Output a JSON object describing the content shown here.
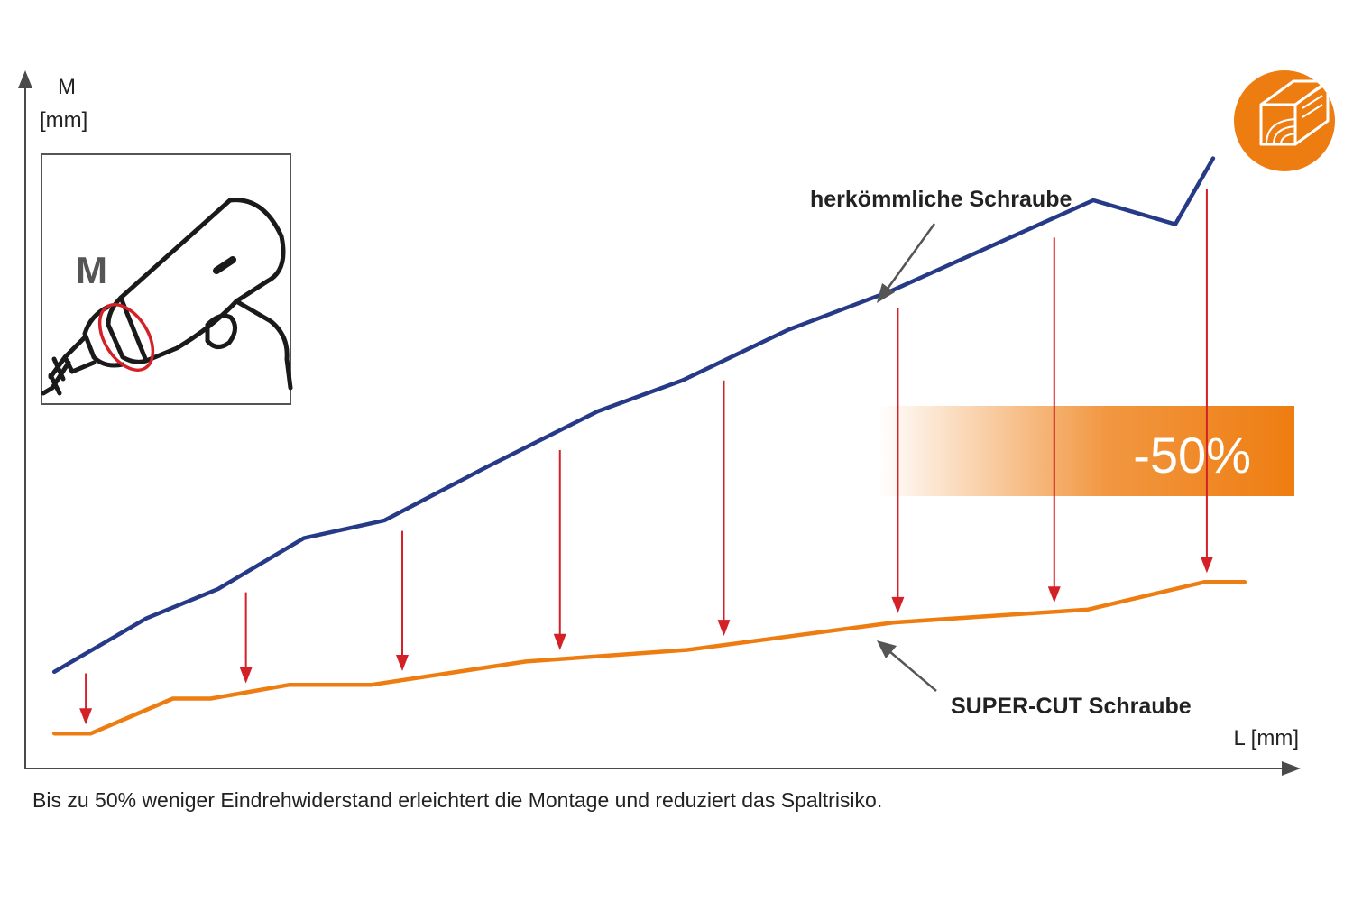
{
  "chart_data": {
    "type": "line",
    "title": "",
    "ylabel_symbol": "M",
    "ylabel_unit": "[mm]",
    "xlabel": "L [mm]",
    "xlim": [
      0,
      100
    ],
    "ylim": [
      0,
      100
    ],
    "grid": false,
    "series": [
      {
        "name": "herkömmliche Schraube",
        "color": "#263a87",
        "x": [
          2.3,
          9.6,
          15.3,
          22.1,
          28.5,
          36.5,
          45.4,
          52.1,
          60.5,
          68.7,
          84.7,
          91.2,
          94.2
        ],
        "y": [
          14.1,
          21.9,
          26.2,
          33.6,
          36.2,
          43.9,
          52.1,
          56.6,
          64.0,
          69.7,
          82.9,
          79.4,
          89.0
        ]
      },
      {
        "name": "SUPER-CUT Schraube",
        "color": "#ee7d11",
        "x": [
          2.3,
          5.2,
          11.7,
          14.7,
          20.9,
          27.4,
          39.7,
          52.5,
          68.9,
          84.3,
          93.5,
          96.7
        ],
        "y": [
          5.1,
          5.1,
          10.2,
          10.2,
          12.2,
          12.2,
          15.6,
          17.3,
          21.3,
          23.2,
          27.2,
          27.2
        ]
      }
    ],
    "reduction_arrows_x": [
      4.8,
      17.5,
      29.9,
      42.4,
      55.4,
      69.2,
      81.6,
      93.7
    ],
    "badge": "-50%",
    "inset_letter": "M",
    "colors": {
      "axis": "#4a4a4a",
      "arrow": "#d42027",
      "accent": "#ee7d11",
      "inset_border": "#555555"
    },
    "icons": [
      "drill-icon",
      "wood-beam-icon"
    ]
  },
  "caption": "Bis zu 50% weniger Eindrehwiderstand  erleichtert die Montage und reduziert das Spaltrisiko."
}
